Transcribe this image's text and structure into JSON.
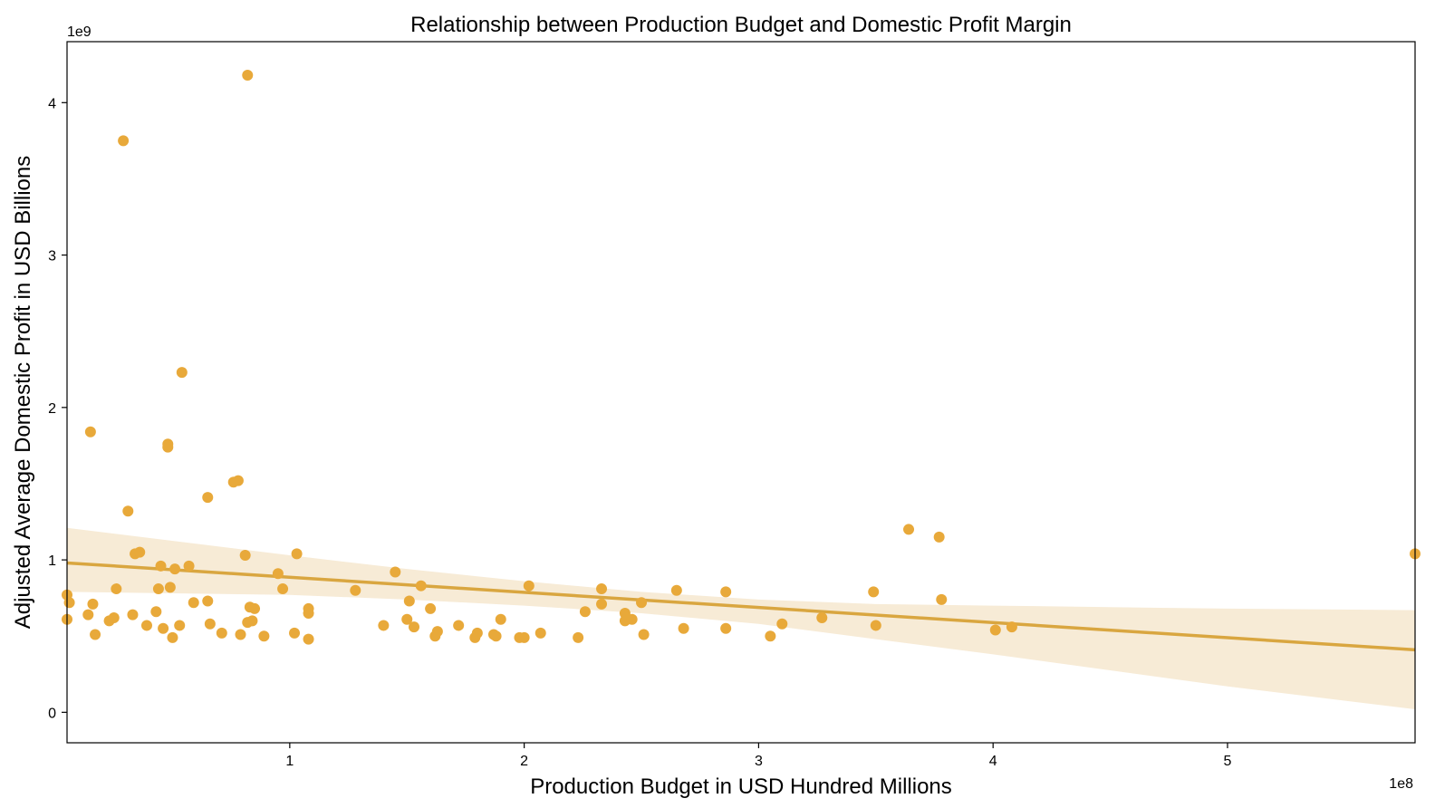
{
  "chart_data": {
    "type": "scatter",
    "title": "Relationship between Production Budget and Domestic Profit Margin",
    "xlabel": "Production Budget in USD Hundred Millions",
    "ylabel": "Adjusted Average Domestic Profit in USD Billions",
    "x_multiplier": "1e8",
    "y_multiplier": "1e9",
    "xlim": [
      0.05,
      5.8
    ],
    "ylim": [
      -0.2,
      4.4
    ],
    "x_ticks": [
      1,
      2,
      3,
      4,
      5
    ],
    "y_ticks": [
      0,
      1,
      2,
      3,
      4
    ],
    "grid": false,
    "legend": "none",
    "colors": {
      "points": "#E8A93A",
      "line": "#D9A640",
      "band": "#F7EBD6"
    },
    "series": [
      {
        "points": [
          [
            0.05,
            0.77
          ],
          [
            0.05,
            0.61
          ],
          [
            0.06,
            0.72
          ],
          [
            0.14,
            0.64
          ],
          [
            0.15,
            1.84
          ],
          [
            0.16,
            0.71
          ],
          [
            0.17,
            0.51
          ],
          [
            0.23,
            0.6
          ],
          [
            0.25,
            0.62
          ],
          [
            0.26,
            0.81
          ],
          [
            0.29,
            3.75
          ],
          [
            0.31,
            1.32
          ],
          [
            0.33,
            0.64
          ],
          [
            0.34,
            1.04
          ],
          [
            0.36,
            1.05
          ],
          [
            0.39,
            0.57
          ],
          [
            0.43,
            0.66
          ],
          [
            0.44,
            0.81
          ],
          [
            0.45,
            0.96
          ],
          [
            0.46,
            0.55
          ],
          [
            0.48,
            1.76
          ],
          [
            0.48,
            1.74
          ],
          [
            0.49,
            0.82
          ],
          [
            0.5,
            0.49
          ],
          [
            0.51,
            0.94
          ],
          [
            0.53,
            0.57
          ],
          [
            0.54,
            2.23
          ],
          [
            0.57,
            0.96
          ],
          [
            0.59,
            0.72
          ],
          [
            0.65,
            0.73
          ],
          [
            0.65,
            1.41
          ],
          [
            0.66,
            0.58
          ],
          [
            0.71,
            0.52
          ],
          [
            0.76,
            1.51
          ],
          [
            0.78,
            1.52
          ],
          [
            0.79,
            0.51
          ],
          [
            0.81,
            1.03
          ],
          [
            0.82,
            4.18
          ],
          [
            0.82,
            0.59
          ],
          [
            0.83,
            0.69
          ],
          [
            0.84,
            0.6
          ],
          [
            0.85,
            0.68
          ],
          [
            0.89,
            0.5
          ],
          [
            0.95,
            0.91
          ],
          [
            0.97,
            0.81
          ],
          [
            1.02,
            0.52
          ],
          [
            1.03,
            1.04
          ],
          [
            1.08,
            0.48
          ],
          [
            1.08,
            0.68
          ],
          [
            1.08,
            0.65
          ],
          [
            1.28,
            0.8
          ],
          [
            1.4,
            0.57
          ],
          [
            1.45,
            0.92
          ],
          [
            1.5,
            0.61
          ],
          [
            1.51,
            0.73
          ],
          [
            1.53,
            0.56
          ],
          [
            1.56,
            0.83
          ],
          [
            1.6,
            0.68
          ],
          [
            1.62,
            0.5
          ],
          [
            1.63,
            0.53
          ],
          [
            1.72,
            0.57
          ],
          [
            1.79,
            0.49
          ],
          [
            1.8,
            0.52
          ],
          [
            1.87,
            0.51
          ],
          [
            1.88,
            0.5
          ],
          [
            1.9,
            0.61
          ],
          [
            1.98,
            0.49
          ],
          [
            2.0,
            0.49
          ],
          [
            2.02,
            0.83
          ],
          [
            2.07,
            0.52
          ],
          [
            2.23,
            0.49
          ],
          [
            2.26,
            0.66
          ],
          [
            2.33,
            0.81
          ],
          [
            2.33,
            0.71
          ],
          [
            2.43,
            0.65
          ],
          [
            2.43,
            0.6
          ],
          [
            2.46,
            0.61
          ],
          [
            2.5,
            0.72
          ],
          [
            2.51,
            0.51
          ],
          [
            2.65,
            0.8
          ],
          [
            2.68,
            0.55
          ],
          [
            2.86,
            0.79
          ],
          [
            2.86,
            0.55
          ],
          [
            3.05,
            0.5
          ],
          [
            3.1,
            0.58
          ],
          [
            3.27,
            0.62
          ],
          [
            3.49,
            0.79
          ],
          [
            3.5,
            0.57
          ],
          [
            3.64,
            1.2
          ],
          [
            3.77,
            1.15
          ],
          [
            3.78,
            0.74
          ],
          [
            4.01,
            0.54
          ],
          [
            4.08,
            0.56
          ],
          [
            5.8,
            1.04
          ]
        ]
      }
    ],
    "regression": {
      "line": [
        [
          0.05,
          0.98
        ],
        [
          5.8,
          0.41
        ]
      ],
      "ci_upper": [
        [
          0.05,
          1.21
        ],
        [
          1.0,
          1.03
        ],
        [
          1.5,
          0.94
        ],
        [
          2.0,
          0.86
        ],
        [
          2.5,
          0.79
        ],
        [
          3.0,
          0.74
        ],
        [
          3.5,
          0.71
        ],
        [
          4.0,
          0.7
        ],
        [
          5.0,
          0.68
        ],
        [
          5.8,
          0.67
        ]
      ],
      "ci_lower": [
        [
          0.05,
          0.79
        ],
        [
          1.0,
          0.77
        ],
        [
          1.5,
          0.74
        ],
        [
          2.0,
          0.7
        ],
        [
          2.5,
          0.65
        ],
        [
          3.0,
          0.58
        ],
        [
          3.5,
          0.48
        ],
        [
          4.0,
          0.38
        ],
        [
          5.0,
          0.17
        ],
        [
          5.8,
          0.02
        ]
      ]
    }
  }
}
